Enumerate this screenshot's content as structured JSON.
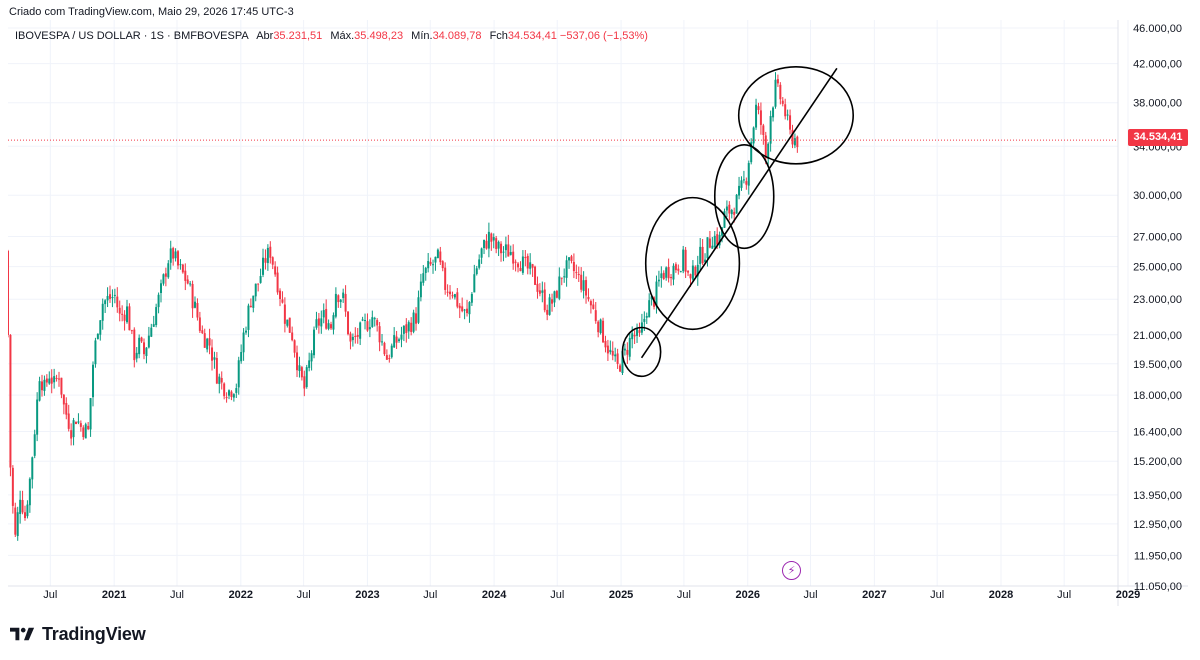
{
  "header": {
    "created": "Criado com TradingView.com, Maio 29, 2026 17:45 UTC-3",
    "symbol": "IBOVESPA / US DOLLAR · 1S · BMFBOVESPA",
    "open_label": "Abr",
    "open_value": "35.231,51",
    "high_label": "Máx.",
    "high_value": "35.498,23",
    "low_label": "Mín.",
    "low_value": "34.089,78",
    "close_label": "Fch",
    "close_value": "34.534,41",
    "change": "−537,06 (−1,53%)"
  },
  "last_price_label": "34.534,41",
  "brand": {
    "name": "TradingView",
    "logo": "tradingview-logo"
  },
  "icons": {
    "alert": "lightning-icon"
  },
  "colors": {
    "up": "#089981",
    "down": "#f23645",
    "annotation": "#000000",
    "grid": "#f0f3fa",
    "axis_text": "#131722"
  },
  "chart_data": {
    "type": "candlestick",
    "scale": "log",
    "ylim": [
      11050,
      46000
    ],
    "xlim": [
      "2020-03",
      "2029-01"
    ],
    "y_ticks": [
      "46.000,00",
      "42.000,00",
      "38.000,00",
      "34.000,00",
      "30.000,00",
      "27.000,00",
      "25.000,00",
      "23.000,00",
      "21.000,00",
      "19.500,00",
      "18.000,00",
      "16.400,00",
      "15.200,00",
      "13.950,00",
      "12.950,00",
      "11.950,00",
      "11.050,00"
    ],
    "x_ticks": [
      {
        "label": "Jul",
        "date": "2020-07",
        "year": false
      },
      {
        "label": "2021",
        "date": "2021-01",
        "year": true
      },
      {
        "label": "Jul",
        "date": "2021-07",
        "year": false
      },
      {
        "label": "2022",
        "date": "2022-01",
        "year": true
      },
      {
        "label": "Jul",
        "date": "2022-07",
        "year": false
      },
      {
        "label": "2023",
        "date": "2023-01",
        "year": true
      },
      {
        "label": "Jul",
        "date": "2023-07",
        "year": false
      },
      {
        "label": "2024",
        "date": "2024-01",
        "year": true
      },
      {
        "label": "Jul",
        "date": "2024-07",
        "year": false
      },
      {
        "label": "2025",
        "date": "2025-01",
        "year": true
      },
      {
        "label": "Jul",
        "date": "2025-07",
        "year": false
      },
      {
        "label": "2026",
        "date": "2026-01",
        "year": true
      },
      {
        "label": "Jul",
        "date": "2026-07",
        "year": false
      },
      {
        "label": "2027",
        "date": "2027-01",
        "year": true
      },
      {
        "label": "Jul",
        "date": "2027-07",
        "year": false
      },
      {
        "label": "2028",
        "date": "2028-01",
        "year": true
      },
      {
        "label": "Jul",
        "date": "2028-07",
        "year": false
      },
      {
        "label": "2029",
        "date": "2029-01",
        "year": true
      }
    ],
    "price_path": [
      [
        "2020-03-01",
        26000
      ],
      [
        "2020-03-08",
        21000
      ],
      [
        "2020-03-15",
        15000
      ],
      [
        "2020-03-22",
        13500
      ],
      [
        "2020-03-29",
        12500
      ],
      [
        "2020-04-12",
        14000
      ],
      [
        "2020-04-26",
        13200
      ],
      [
        "2020-05-10",
        14500
      ],
      [
        "2020-05-24",
        16500
      ],
      [
        "2020-06-07",
        19000
      ],
      [
        "2020-06-21",
        18300
      ],
      [
        "2020-07-05",
        19000
      ],
      [
        "2020-07-19",
        18500
      ],
      [
        "2020-08-02",
        19000
      ],
      [
        "2020-08-16",
        17500
      ],
      [
        "2020-09-06",
        16500
      ],
      [
        "2020-09-20",
        17000
      ],
      [
        "2020-10-04",
        16600
      ],
      [
        "2020-10-25",
        16400
      ],
      [
        "2020-11-08",
        19500
      ],
      [
        "2020-11-22",
        21500
      ],
      [
        "2020-12-06",
        22800
      ],
      [
        "2020-12-20",
        23000
      ],
      [
        "2021-01-10",
        23200
      ],
      [
        "2021-01-24",
        22000
      ],
      [
        "2021-02-14",
        22400
      ],
      [
        "2021-03-07",
        20000
      ],
      [
        "2021-03-21",
        20500
      ],
      [
        "2021-04-04",
        20000
      ],
      [
        "2021-04-18",
        21000
      ],
      [
        "2021-05-09",
        22500
      ],
      [
        "2021-05-23",
        23500
      ],
      [
        "2021-06-13",
        25500
      ],
      [
        "2021-06-27",
        25800
      ],
      [
        "2021-07-11",
        25000
      ],
      [
        "2021-07-25",
        24500
      ],
      [
        "2021-08-08",
        24000
      ],
      [
        "2021-08-29",
        22500
      ],
      [
        "2021-09-19",
        21000
      ],
      [
        "2021-10-10",
        20500
      ],
      [
        "2021-10-31",
        19000
      ],
      [
        "2021-11-14",
        18500
      ],
      [
        "2021-12-05",
        18200
      ],
      [
        "2021-12-26",
        18500
      ],
      [
        "2022-01-16",
        21000
      ],
      [
        "2022-02-06",
        23000
      ],
      [
        "2022-02-27",
        24000
      ],
      [
        "2022-03-20",
        25500
      ],
      [
        "2022-04-03",
        26000
      ],
      [
        "2022-04-24",
        24000
      ],
      [
        "2022-05-15",
        22000
      ],
      [
        "2022-06-05",
        21000
      ],
      [
        "2022-06-26",
        19000
      ],
      [
        "2022-07-10",
        18300
      ],
      [
        "2022-07-24",
        19500
      ],
      [
        "2022-08-14",
        21500
      ],
      [
        "2022-09-04",
        22000
      ],
      [
        "2022-09-25",
        21500
      ],
      [
        "2022-10-09",
        23500
      ],
      [
        "2022-10-30",
        23000
      ],
      [
        "2022-11-20",
        20500
      ],
      [
        "2022-12-11",
        21000
      ],
      [
        "2023-01-01",
        21500
      ],
      [
        "2023-01-22",
        22000
      ],
      [
        "2023-02-12",
        21000
      ],
      [
        "2023-03-05",
        19800
      ],
      [
        "2023-03-26",
        20500
      ],
      [
        "2023-04-16",
        21000
      ],
      [
        "2023-05-07",
        21500
      ],
      [
        "2023-05-28",
        22000
      ],
      [
        "2023-06-18",
        24500
      ],
      [
        "2023-07-09",
        25000
      ],
      [
        "2023-07-30",
        25500
      ],
      [
        "2023-08-20",
        23800
      ],
      [
        "2023-09-10",
        23500
      ],
      [
        "2023-10-01",
        22500
      ],
      [
        "2023-10-22",
        22000
      ],
      [
        "2023-11-12",
        24500
      ],
      [
        "2023-12-03",
        26000
      ],
      [
        "2023-12-24",
        27000
      ],
      [
        "2024-01-14",
        26200
      ],
      [
        "2024-02-04",
        26000
      ],
      [
        "2024-02-25",
        26000
      ],
      [
        "2024-03-17",
        25500
      ],
      [
        "2024-04-07",
        25000
      ],
      [
        "2024-04-28",
        24500
      ],
      [
        "2024-05-19",
        23500
      ],
      [
        "2024-06-09",
        22500
      ],
      [
        "2024-06-30",
        23000
      ],
      [
        "2024-07-21",
        24500
      ],
      [
        "2024-08-11",
        25000
      ],
      [
        "2024-08-25",
        24700
      ],
      [
        "2024-09-15",
        24000
      ],
      [
        "2024-10-06",
        23000
      ],
      [
        "2024-10-27",
        22000
      ],
      [
        "2024-11-17",
        21000
      ],
      [
        "2024-12-08",
        20000
      ],
      [
        "2024-12-29",
        19300
      ],
      [
        "2025-01-19",
        20000
      ],
      [
        "2025-02-09",
        21000
      ],
      [
        "2025-03-02",
        20800
      ],
      [
        "2025-03-23",
        22500
      ],
      [
        "2025-04-13",
        23000
      ],
      [
        "2025-05-04",
        24500
      ],
      [
        "2025-05-25",
        24800
      ],
      [
        "2025-06-15",
        25000
      ],
      [
        "2025-07-06",
        25500
      ],
      [
        "2025-07-27",
        24000
      ],
      [
        "2025-08-17",
        25500
      ],
      [
        "2025-09-07",
        26000
      ],
      [
        "2025-09-28",
        27000
      ],
      [
        "2025-10-19",
        26800
      ],
      [
        "2025-11-02",
        28500
      ],
      [
        "2025-11-23",
        29000
      ],
      [
        "2025-12-07",
        29500
      ],
      [
        "2025-12-21",
        30500
      ],
      [
        "2026-01-04",
        31500
      ],
      [
        "2026-01-18",
        34500
      ],
      [
        "2026-02-01",
        37500
      ],
      [
        "2026-02-15",
        36000
      ],
      [
        "2026-03-01",
        33000
      ],
      [
        "2026-03-15",
        37000
      ],
      [
        "2026-03-29",
        39500
      ],
      [
        "2026-04-12",
        38500
      ],
      [
        "2026-04-26",
        37000
      ],
      [
        "2026-05-10",
        35000
      ],
      [
        "2026-05-29",
        34534
      ]
    ]
  },
  "annotations": {
    "trendline": {
      "from": [
        "2025-03-01",
        19800
      ],
      "to": [
        "2026-09-15",
        41500
      ]
    },
    "circles": [
      {
        "center": [
          "2025-03-01",
          20100
        ],
        "rx_days": 55,
        "ry_ratio_top": 1.065,
        "ry_ratio_bottom": 0.94
      },
      {
        "center": [
          "2025-07-26",
          25200
        ],
        "rx_days": 135,
        "ry_ratio_top": 1.19,
        "ry_ratio_bottom": 0.85
      },
      {
        "center": [
          "2025-12-22",
          29900
        ],
        "rx_days": 85,
        "ry_ratio_top": 1.14,
        "ry_ratio_bottom": 0.875
      },
      {
        "center": [
          "2026-05-20",
          36800
        ],
        "rx_days": 165,
        "ry_ratio_top": 1.115,
        "ry_ratio_bottom": 0.87
      }
    ]
  }
}
